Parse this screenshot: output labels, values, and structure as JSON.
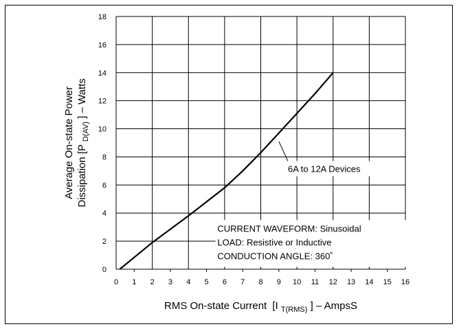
{
  "chart_data": {
    "type": "line",
    "xlabel": {
      "main": "RMS On-state Current",
      "bracket_open": "[I",
      "sub": "T(RMS)",
      "suffix": "] – AmpsS"
    },
    "ylabel": {
      "line1": "Average On-state Power",
      "line2_main": "Dissipation [P",
      "line2_sub": "D(AV)",
      "line2_suffix": "] – Watts"
    },
    "xlim": [
      0,
      16
    ],
    "ylim": [
      0,
      18
    ],
    "x_ticks": [
      "0",
      "1",
      "2",
      "3",
      "4",
      "5",
      "6",
      "7",
      "8",
      "9",
      "10",
      "11",
      "12",
      "13",
      "14",
      "15",
      "16"
    ],
    "y_ticks": [
      "0",
      "2",
      "4",
      "6",
      "8",
      "10",
      "12",
      "14",
      "16",
      "18"
    ],
    "grid": true,
    "series": [
      {
        "name": "6A to 12A Devices",
        "x": [
          0.2,
          2,
          4,
          6,
          7,
          8,
          9,
          10,
          11,
          12
        ],
        "y": [
          0,
          1.9,
          3.8,
          5.8,
          7.0,
          8.3,
          9.7,
          11.1,
          12.5,
          14.0
        ]
      }
    ],
    "annotations": {
      "series_label": "6A to 12A Devices",
      "conditions": [
        "CURRENT WAVEFORM: Sinusoidal",
        "LOAD: Resistive or Inductive",
        "CONDUCTION ANGLE: 360˚"
      ]
    }
  }
}
